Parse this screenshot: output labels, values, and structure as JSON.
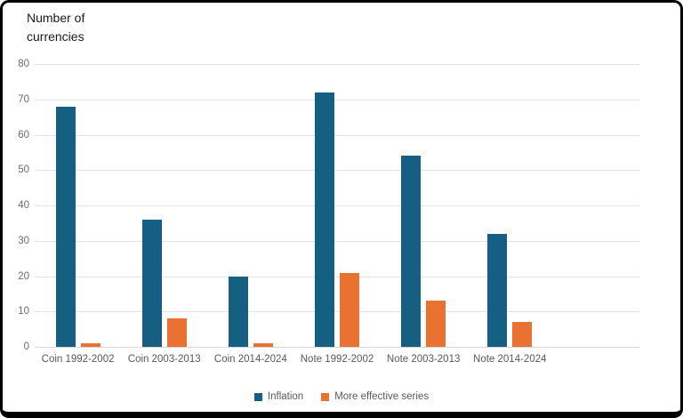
{
  "chart_data": {
    "type": "bar",
    "title_lines": [
      "Number of",
      "currencies"
    ],
    "categories": [
      "Coin 1992-2002",
      "Coin 2003-2013",
      "Coin 2014-2024",
      "Note 1992-2002",
      "Note 2003-2013",
      "Note 2014-2024"
    ],
    "series": [
      {
        "name": "Inflation",
        "color": "#156082",
        "values": [
          68,
          36,
          20,
          72,
          54,
          32
        ]
      },
      {
        "name": "More effective series",
        "color": "#E97132",
        "values": [
          1,
          8,
          1,
          21,
          13,
          7
        ]
      }
    ],
    "ylim": [
      0,
      80
    ],
    "yticks": [
      0,
      10,
      20,
      30,
      40,
      50,
      60,
      70,
      80
    ],
    "grid": true,
    "legend_position": "bottom",
    "empty_trailing_categories": 1,
    "colors": {
      "gridline": "#e2e2e2",
      "axis_line": "#d6d6d6",
      "tick_text": "#6b6b6b",
      "title_text": "#1a1a1a",
      "legend_text": "#595959",
      "frame_border": "#000000",
      "background": "#ffffff"
    }
  }
}
